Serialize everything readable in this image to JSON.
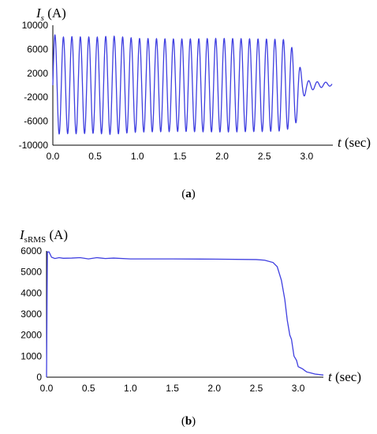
{
  "colors": {
    "series": "#3f3fe0",
    "axis": "#000000"
  },
  "chart_data": [
    {
      "type": "line",
      "panel": "(a)",
      "caption_open": "(",
      "caption_letter": "a",
      "caption_close": ")",
      "y_label_main": "I",
      "y_label_sub": "s",
      "y_label_unit": " (A)",
      "x_label_main": "t",
      "x_label_unit": " (sec)",
      "xlim": [
        0,
        3.3
      ],
      "ylim": [
        -10000,
        10000
      ],
      "x_ticks": [
        "0.0",
        "0.5",
        "1.0",
        "1.5",
        "2.0",
        "2.5",
        "3.0"
      ],
      "y_ticks": [
        "10000",
        "6000",
        "2000",
        "-2000",
        "-6000",
        "-10000"
      ],
      "series": [
        {
          "oscillation_frequency_hz": 10,
          "envelope": [
            [
              0.0,
              8500
            ],
            [
              0.1,
              8000
            ],
            [
              0.2,
              8100
            ],
            [
              0.5,
              8000
            ],
            [
              0.7,
              8200
            ],
            [
              1.0,
              7800
            ],
            [
              1.5,
              7700
            ],
            [
              2.0,
              7800
            ],
            [
              2.5,
              7700
            ],
            [
              2.75,
              7600
            ],
            [
              2.85,
              6500
            ],
            [
              2.9,
              4500
            ],
            [
              2.95,
              2000
            ],
            [
              3.0,
              1000
            ],
            [
              3.1,
              600
            ],
            [
              3.2,
              400
            ],
            [
              3.3,
              300
            ]
          ],
          "offset": [
            [
              0.0,
              0
            ],
            [
              2.8,
              0
            ],
            [
              2.85,
              -1000
            ],
            [
              2.9,
              -400
            ],
            [
              3.0,
              -200
            ],
            [
              3.1,
              0
            ],
            [
              3.3,
              200
            ]
          ]
        }
      ]
    },
    {
      "type": "line",
      "panel": "(b)",
      "caption_open": "(",
      "caption_letter": "b",
      "caption_close": ")",
      "y_label_main": "I",
      "y_label_sub": "sRMS",
      "y_label_unit": " (A)",
      "x_label_main": "t",
      "x_label_unit": " (sec)",
      "xlim": [
        0,
        3.3
      ],
      "ylim": [
        0,
        6000
      ],
      "x_ticks": [
        "0.0",
        "0.5",
        "1.0",
        "1.5",
        "2.0",
        "2.5",
        "3.0"
      ],
      "y_ticks": [
        "6000",
        "5000",
        "4000",
        "3000",
        "2000",
        "1000",
        "0"
      ],
      "series": [
        {
          "points": [
            [
              0.0,
              0
            ],
            [
              0.01,
              5950
            ],
            [
              0.03,
              5950
            ],
            [
              0.06,
              5700
            ],
            [
              0.1,
              5640
            ],
            [
              0.15,
              5680
            ],
            [
              0.2,
              5650
            ],
            [
              0.3,
              5660
            ],
            [
              0.4,
              5680
            ],
            [
              0.5,
              5620
            ],
            [
              0.6,
              5680
            ],
            [
              0.7,
              5640
            ],
            [
              0.8,
              5660
            ],
            [
              1.0,
              5620
            ],
            [
              1.5,
              5620
            ],
            [
              2.0,
              5610
            ],
            [
              2.5,
              5590
            ],
            [
              2.6,
              5560
            ],
            [
              2.7,
              5450
            ],
            [
              2.75,
              5250
            ],
            [
              2.8,
              4600
            ],
            [
              2.84,
              3700
            ],
            [
              2.87,
              2700
            ],
            [
              2.9,
              2000
            ],
            [
              2.92,
              1800
            ],
            [
              2.95,
              1000
            ],
            [
              2.98,
              800
            ],
            [
              3.0,
              500
            ],
            [
              3.05,
              400
            ],
            [
              3.1,
              250
            ],
            [
              3.15,
              200
            ],
            [
              3.2,
              150
            ],
            [
              3.3,
              100
            ]
          ]
        }
      ]
    }
  ]
}
